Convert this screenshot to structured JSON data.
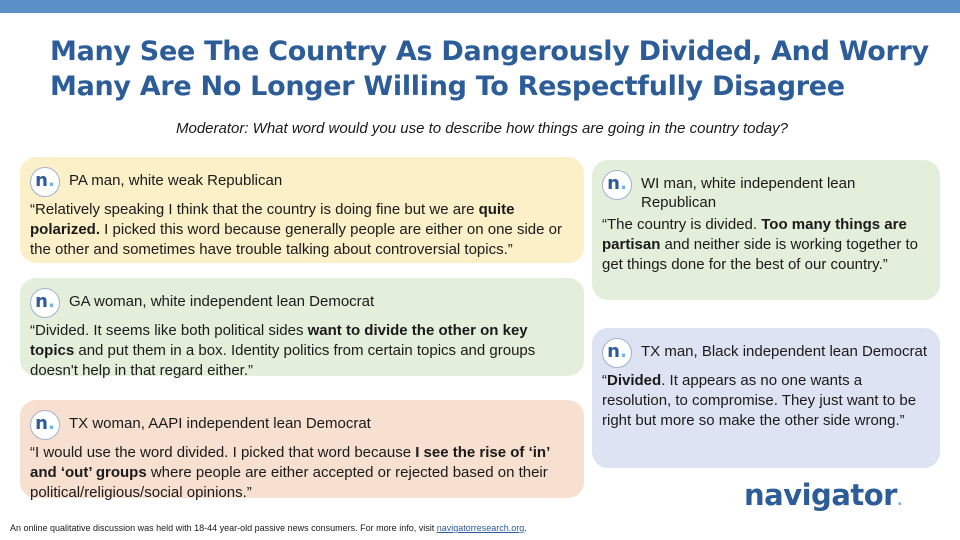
{
  "colors": {
    "accent": "#2d5d99",
    "bar": "#5b8fc7",
    "dot": "#6cb5e6",
    "yellow": "#fbf0c8",
    "green": "#e3efda",
    "peach": "#f7e0d0",
    "blue": "#dde3f2"
  },
  "title": "Many See The Country As Dangerously Divided, And Worry Many Are No Longer Willing To Respectfully Disagree",
  "moderator": "Moderator: What word would you use to describe how things are going in the country today?",
  "logo_icon": {
    "letter": "n",
    "dot": "."
  },
  "cards": [
    {
      "persona": "PA man, white weak Republican",
      "quote": [
        {
          "t": "“Relatively speaking I think that the country is doing fine but we are "
        },
        {
          "t": "quite polarized.",
          "b": true
        },
        {
          "t": " I picked this word because generally people are either on one side or the other and sometimes have trouble talking about controversial topics.”"
        }
      ]
    },
    {
      "persona": "GA woman, white independent lean Democrat",
      "quote": [
        {
          "t": "“Divided. It seems like both political sides "
        },
        {
          "t": "want to divide the other on key topics",
          "b": true
        },
        {
          "t": " and put them in a box. Identity politics from certain topics and groups doesn't help in that regard either.”"
        }
      ]
    },
    {
      "persona": "TX woman, AAPI independent lean Democrat",
      "quote": [
        {
          "t": "“I would use the word divided. I picked that word because "
        },
        {
          "t": "I see the rise of ‘in’ and ‘out’ groups",
          "b": true
        },
        {
          "t": " where people are either accepted or rejected based on their political/religious/social opinions.”"
        }
      ]
    },
    {
      "persona": "WI man, white independent lean Republican",
      "quote": [
        {
          "t": "“The country is divided. "
        },
        {
          "t": "Too many things are partisan",
          "b": true
        },
        {
          "t": " and neither side is working together to get things done for the best of our country.”"
        }
      ]
    },
    {
      "persona": "TX man, Black independent lean Democrat",
      "quote": [
        {
          "t": "“"
        },
        {
          "t": "Divided",
          "b": true
        },
        {
          "t": ". It appears as no one wants a resolution, to compromise. They just want to be right but more so make the other side wrong.”"
        }
      ]
    }
  ],
  "footer": {
    "text": "An online qualitative discussion was held with 18-44 year-old passive news consumers. For more info, visit ",
    "link": "navigatorresearch.org",
    "tail": "."
  },
  "brand": {
    "name": "navigator",
    "dot": "."
  }
}
